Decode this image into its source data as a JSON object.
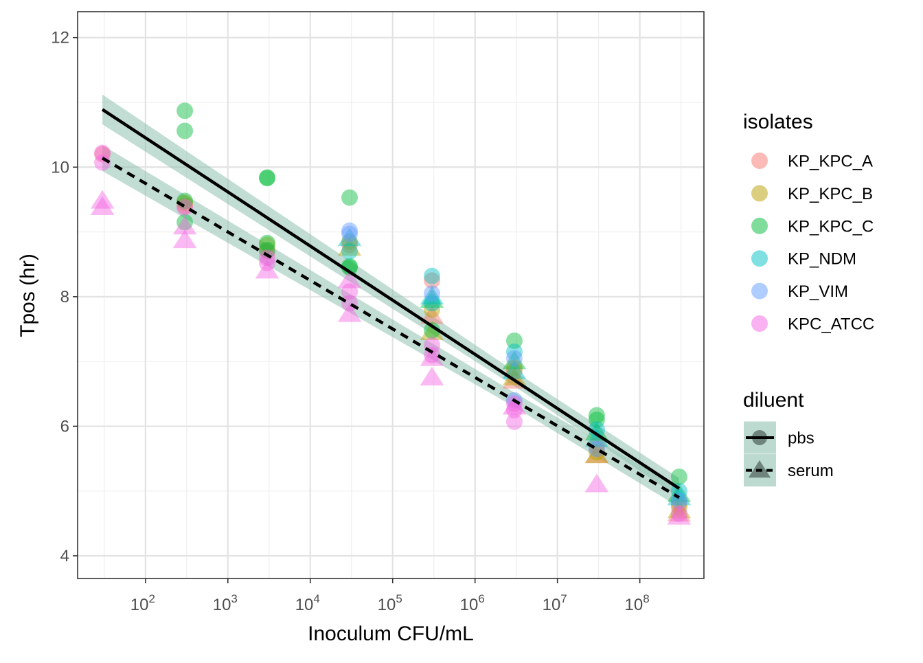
{
  "chart_data": {
    "type": "scatter",
    "xlabel": "Inoculum CFU/mL",
    "ylabel": "Tpos (hr)",
    "x_scale": "log10",
    "xlim": [
      15,
      600000000
    ],
    "ylim": [
      3.65,
      12.4
    ],
    "x_ticks": [
      {
        "value": 100,
        "base": "10",
        "exp": "2"
      },
      {
        "value": 1000,
        "base": "10",
        "exp": "3"
      },
      {
        "value": 10000,
        "base": "10",
        "exp": "4"
      },
      {
        "value": 100000,
        "base": "10",
        "exp": "5"
      },
      {
        "value": 1000000,
        "base": "10",
        "exp": "6"
      },
      {
        "value": 10000000,
        "base": "10",
        "exp": "7"
      },
      {
        "value": 100000000,
        "base": "10",
        "exp": "8"
      }
    ],
    "y_ticks": [
      {
        "value": 4,
        "label": "4"
      },
      {
        "value": 6,
        "label": "6"
      },
      {
        "value": 8,
        "label": "8"
      },
      {
        "value": 10,
        "label": "10"
      },
      {
        "value": 12,
        "label": "12"
      }
    ],
    "grid": true,
    "legend_position": "right",
    "isolates_legend": {
      "title": "isolates",
      "items": [
        {
          "label": "KP_KPC_A",
          "color": "#F8766D"
        },
        {
          "label": "KP_KPC_B",
          "color": "#B79F00"
        },
        {
          "label": "KP_KPC_C",
          "color": "#00BA38"
        },
        {
          "label": "KP_NDM",
          "color": "#00BFC4"
        },
        {
          "label": "KP_VIM",
          "color": "#619CFF"
        },
        {
          "label": "KPC_ATCC",
          "color": "#F564E3"
        }
      ]
    },
    "diluent_legend": {
      "title": "diluent",
      "band_color": "#8FC1B1",
      "items": [
        {
          "label": "pbs",
          "shape": "circle",
          "linetype": "solid"
        },
        {
          "label": "serum",
          "shape": "triangle",
          "linetype": "dashed"
        }
      ]
    },
    "series": [
      {
        "name": "KP_KPC_A",
        "color": "#F8766D",
        "points": [
          {
            "x": 30,
            "y": 10.2,
            "diluent": "pbs"
          },
          {
            "x": 300,
            "y": 9.4,
            "diluent": "pbs"
          },
          {
            "x": 3000,
            "y": 8.7,
            "diluent": "pbs"
          },
          {
            "x": 30000,
            "y": 8.8,
            "diluent": "pbs"
          },
          {
            "x": 300000,
            "y": 8.25,
            "diluent": "pbs"
          },
          {
            "x": 300000,
            "y": 7.7,
            "diluent": "serum"
          },
          {
            "x": 3000000,
            "y": 6.85,
            "diluent": "pbs"
          },
          {
            "x": 3000000,
            "y": 6.7,
            "diluent": "serum"
          },
          {
            "x": 30000000,
            "y": 5.7,
            "diluent": "pbs"
          },
          {
            "x": 30000000,
            "y": 5.55,
            "diluent": "serum"
          },
          {
            "x": 300000000,
            "y": 4.8,
            "diluent": "pbs"
          },
          {
            "x": 300000000,
            "y": 4.65,
            "diluent": "serum"
          }
        ]
      },
      {
        "name": "KP_KPC_B",
        "color": "#B79F00",
        "points": [
          {
            "x": 300,
            "y": 9.45,
            "diluent": "pbs"
          },
          {
            "x": 3000,
            "y": 8.8,
            "diluent": "pbs"
          },
          {
            "x": 30000,
            "y": 8.85,
            "diluent": "pbs"
          },
          {
            "x": 30000,
            "y": 8.75,
            "diluent": "serum"
          },
          {
            "x": 300000,
            "y": 7.8,
            "diluent": "pbs"
          },
          {
            "x": 300000,
            "y": 7.45,
            "diluent": "serum"
          },
          {
            "x": 3000000,
            "y": 6.9,
            "diluent": "pbs"
          },
          {
            "x": 3000000,
            "y": 6.75,
            "diluent": "serum"
          },
          {
            "x": 30000000,
            "y": 5.6,
            "diluent": "pbs"
          },
          {
            "x": 30000000,
            "y": 5.55,
            "diluent": "serum"
          },
          {
            "x": 300000000,
            "y": 4.75,
            "diluent": "pbs"
          },
          {
            "x": 300000000,
            "y": 4.7,
            "diluent": "serum"
          }
        ]
      },
      {
        "name": "KP_KPC_C",
        "color": "#00BA38",
        "points": [
          {
            "x": 300,
            "y": 10.87,
            "diluent": "pbs"
          },
          {
            "x": 300,
            "y": 10.56,
            "diluent": "pbs"
          },
          {
            "x": 300,
            "y": 9.48,
            "diluent": "pbs"
          },
          {
            "x": 300,
            "y": 9.15,
            "diluent": "pbs"
          },
          {
            "x": 3000,
            "y": 9.84,
            "diluent": "pbs"
          },
          {
            "x": 3000,
            "y": 9.83,
            "diluent": "pbs"
          },
          {
            "x": 3000,
            "y": 8.83,
            "diluent": "pbs"
          },
          {
            "x": 3000,
            "y": 8.72,
            "diluent": "pbs"
          },
          {
            "x": 30000,
            "y": 9.53,
            "diluent": "pbs"
          },
          {
            "x": 30000,
            "y": 8.47,
            "diluent": "pbs"
          },
          {
            "x": 30000,
            "y": 8.45,
            "diluent": "pbs"
          },
          {
            "x": 300000,
            "y": 7.48,
            "diluent": "pbs"
          },
          {
            "x": 300000,
            "y": 7.95,
            "diluent": "serum"
          },
          {
            "x": 3000000,
            "y": 7.32,
            "diluent": "pbs"
          },
          {
            "x": 3000000,
            "y": 7.0,
            "diluent": "serum"
          },
          {
            "x": 30000000,
            "y": 6.17,
            "diluent": "pbs"
          },
          {
            "x": 30000000,
            "y": 6.1,
            "diluent": "pbs"
          },
          {
            "x": 30000000,
            "y": 5.9,
            "diluent": "serum"
          },
          {
            "x": 300000000,
            "y": 5.22,
            "diluent": "pbs"
          },
          {
            "x": 300000000,
            "y": 4.95,
            "diluent": "serum"
          }
        ]
      },
      {
        "name": "KP_NDM",
        "color": "#00BFC4",
        "points": [
          {
            "x": 30000,
            "y": 8.7,
            "diluent": "pbs"
          },
          {
            "x": 30000,
            "y": 8.9,
            "diluent": "serum"
          },
          {
            "x": 300000,
            "y": 8.32,
            "diluent": "pbs"
          },
          {
            "x": 300000,
            "y": 7.9,
            "diluent": "pbs"
          },
          {
            "x": 300000,
            "y": 8.0,
            "diluent": "serum"
          },
          {
            "x": 3000000,
            "y": 7.15,
            "diluent": "pbs"
          },
          {
            "x": 3000000,
            "y": 6.85,
            "diluent": "serum"
          },
          {
            "x": 30000000,
            "y": 5.95,
            "diluent": "pbs"
          },
          {
            "x": 30000000,
            "y": 5.8,
            "diluent": "serum"
          },
          {
            "x": 300000000,
            "y": 5.0,
            "diluent": "pbs"
          },
          {
            "x": 300000000,
            "y": 4.9,
            "diluent": "serum"
          }
        ]
      },
      {
        "name": "KP_VIM",
        "color": "#619CFF",
        "points": [
          {
            "x": 30000,
            "y": 9.02,
            "diluent": "pbs"
          },
          {
            "x": 30000,
            "y": 8.97,
            "diluent": "pbs"
          },
          {
            "x": 300000,
            "y": 8.05,
            "diluent": "pbs"
          },
          {
            "x": 3000000,
            "y": 7.05,
            "diluent": "pbs"
          },
          {
            "x": 3000000,
            "y": 6.4,
            "diluent": "pbs"
          },
          {
            "x": 30000000,
            "y": 5.65,
            "diluent": "pbs"
          },
          {
            "x": 300000000,
            "y": 4.85,
            "diluent": "pbs"
          }
        ]
      },
      {
        "name": "KPC_ATCC",
        "color": "#F564E3",
        "points": [
          {
            "x": 30,
            "y": 10.22,
            "diluent": "pbs"
          },
          {
            "x": 30,
            "y": 10.07,
            "diluent": "pbs"
          },
          {
            "x": 30,
            "y": 9.48,
            "diluent": "serum"
          },
          {
            "x": 30,
            "y": 9.38,
            "diluent": "serum"
          },
          {
            "x": 300,
            "y": 9.38,
            "diluent": "pbs"
          },
          {
            "x": 300,
            "y": 9.08,
            "diluent": "serum"
          },
          {
            "x": 300,
            "y": 8.87,
            "diluent": "serum"
          },
          {
            "x": 3000,
            "y": 8.6,
            "diluent": "pbs"
          },
          {
            "x": 3000,
            "y": 8.52,
            "diluent": "pbs"
          },
          {
            "x": 3000,
            "y": 8.4,
            "diluent": "serum"
          },
          {
            "x": 30000,
            "y": 8.08,
            "diluent": "pbs"
          },
          {
            "x": 30000,
            "y": 7.9,
            "diluent": "pbs"
          },
          {
            "x": 30000,
            "y": 8.25,
            "diluent": "serum"
          },
          {
            "x": 30000,
            "y": 7.73,
            "diluent": "serum"
          },
          {
            "x": 300000,
            "y": 7.25,
            "diluent": "pbs"
          },
          {
            "x": 300000,
            "y": 7.1,
            "diluent": "pbs"
          },
          {
            "x": 300000,
            "y": 7.05,
            "diluent": "serum"
          },
          {
            "x": 300000,
            "y": 6.75,
            "diluent": "serum"
          },
          {
            "x": 3000000,
            "y": 6.35,
            "diluent": "pbs"
          },
          {
            "x": 3000000,
            "y": 6.25,
            "diluent": "pbs"
          },
          {
            "x": 3000000,
            "y": 6.07,
            "diluent": "pbs"
          },
          {
            "x": 3000000,
            "y": 6.3,
            "diluent": "serum"
          },
          {
            "x": 30000000,
            "y": 5.1,
            "diluent": "serum"
          },
          {
            "x": 300000000,
            "y": 4.65,
            "diluent": "pbs"
          },
          {
            "x": 300000000,
            "y": 4.6,
            "diluent": "serum"
          }
        ]
      }
    ],
    "fits": [
      {
        "name": "pbs",
        "linetype": "solid",
        "line": [
          {
            "x": 30,
            "y": 10.89
          },
          {
            "x": 300000000,
            "y": 5.04
          }
        ],
        "band_upper": [
          {
            "x": 30,
            "y": 11.12
          },
          {
            "x": 3000000,
            "y": 6.85
          },
          {
            "x": 300000000,
            "y": 5.2
          }
        ],
        "band_lower": [
          {
            "x": 30,
            "y": 10.66
          },
          {
            "x": 3000000,
            "y": 6.62
          },
          {
            "x": 300000000,
            "y": 4.9
          }
        ]
      },
      {
        "name": "serum",
        "linetype": "dashed",
        "line": [
          {
            "x": 30,
            "y": 10.14
          },
          {
            "x": 300000000,
            "y": 4.9
          }
        ],
        "band_upper": [
          {
            "x": 30,
            "y": 10.34
          },
          {
            "x": 3000000,
            "y": 6.52
          },
          {
            "x": 300000000,
            "y": 5.05
          }
        ],
        "band_lower": [
          {
            "x": 30,
            "y": 9.94
          },
          {
            "x": 3000000,
            "y": 6.3
          },
          {
            "x": 300000000,
            "y": 4.75
          }
        ]
      }
    ]
  }
}
